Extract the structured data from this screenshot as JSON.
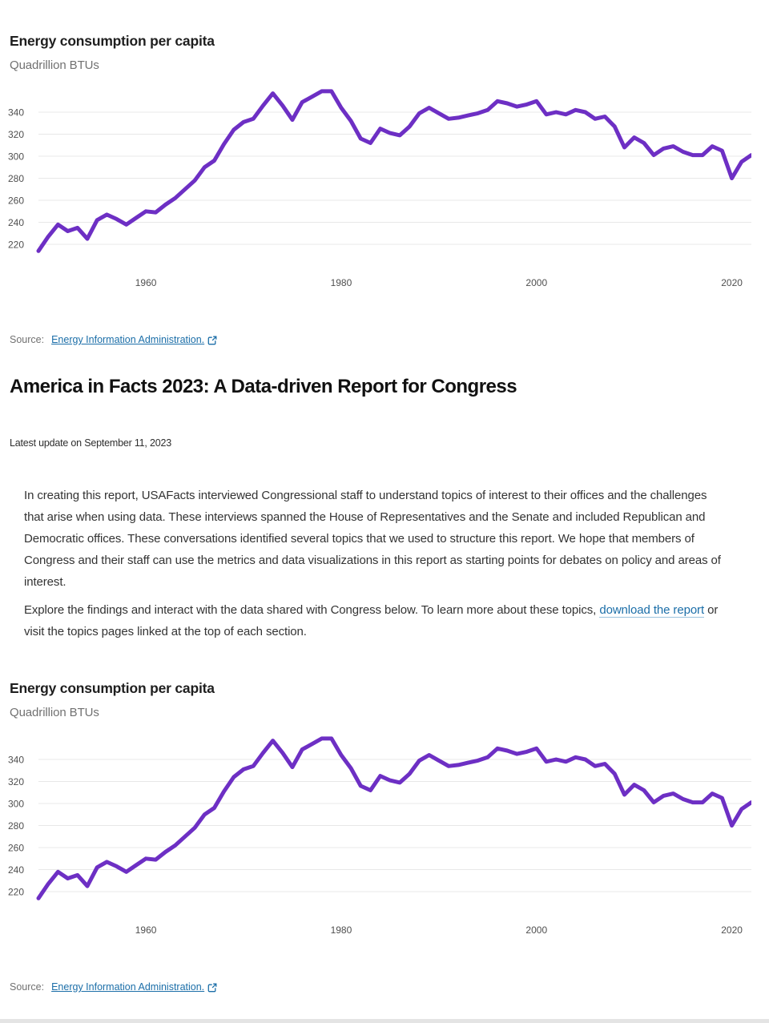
{
  "chart": {
    "title": "Energy consumption per capita",
    "subtitle": "Quadrillion BTUs",
    "source_label": "Source:",
    "source_link_text": "Energy Information Administration."
  },
  "heading": {
    "title": "America in Facts 2023: A Data-driven Report for Congress",
    "updated": "Latest update on September 11, 2023"
  },
  "intro": {
    "p1": "In creating this report, USAFacts interviewed Congressional staff to understand topics of interest to their offices and the challenges that arise when using data. These interviews spanned the House of Representatives and the Senate and included Republican and Democratic offices. These conversations identified several topics that we used to structure this report. We hope that members of Congress and their staff can use the metrics and data visualizations in this report as starting points for debates on policy and areas of interest.",
    "p2_before": "Explore the findings and interact with the data shared with Congress below. To learn more about these topics, ",
    "p2_link": "download the report",
    "p2_after": " or visit the topics pages linked at the top of each section."
  },
  "colors": {
    "line": "#6d2fc4",
    "grid": "#e8e8e8",
    "tick_text": "#4f4f4f",
    "link_blue": "#1b6ea8",
    "footer_bar": "#e4e4e4"
  },
  "chart_data": {
    "type": "line",
    "title": "Energy consumption per capita",
    "ylabel": "Quadrillion BTUs",
    "legend": [],
    "grid": true,
    "x": [
      1949,
      1950,
      1951,
      1952,
      1953,
      1954,
      1955,
      1956,
      1957,
      1958,
      1959,
      1960,
      1961,
      1962,
      1963,
      1964,
      1965,
      1966,
      1967,
      1968,
      1969,
      1970,
      1971,
      1972,
      1973,
      1974,
      1975,
      1976,
      1977,
      1978,
      1979,
      1980,
      1981,
      1982,
      1983,
      1984,
      1985,
      1986,
      1987,
      1988,
      1989,
      1990,
      1991,
      1992,
      1993,
      1994,
      1995,
      1996,
      1997,
      1998,
      1999,
      2000,
      2001,
      2002,
      2003,
      2004,
      2005,
      2006,
      2007,
      2008,
      2009,
      2010,
      2011,
      2012,
      2013,
      2014,
      2015,
      2016,
      2017,
      2018,
      2019,
      2020,
      2021,
      2022
    ],
    "values": [
      214,
      227,
      238,
      232,
      235,
      225,
      242,
      247,
      243,
      238,
      244,
      250,
      249,
      256,
      262,
      270,
      278,
      290,
      296,
      311,
      324,
      331,
      334,
      346,
      357,
      346,
      333,
      349,
      354,
      359,
      359,
      344,
      332,
      316,
      312,
      325,
      321,
      319,
      327,
      339,
      344,
      339,
      334,
      335,
      337,
      339,
      342,
      350,
      348,
      345,
      347,
      350,
      338,
      340,
      338,
      342,
      340,
      334,
      336,
      327,
      308,
      317,
      312,
      301,
      307,
      309,
      304,
      301,
      301,
      309,
      305,
      280,
      295,
      301
    ],
    "yticks": [
      220,
      240,
      260,
      280,
      300,
      320,
      340
    ],
    "xticks": [
      1960,
      1980,
      2000,
      2020
    ],
    "ylim": [
      205,
      365
    ],
    "xlim": [
      1949,
      2022
    ]
  }
}
